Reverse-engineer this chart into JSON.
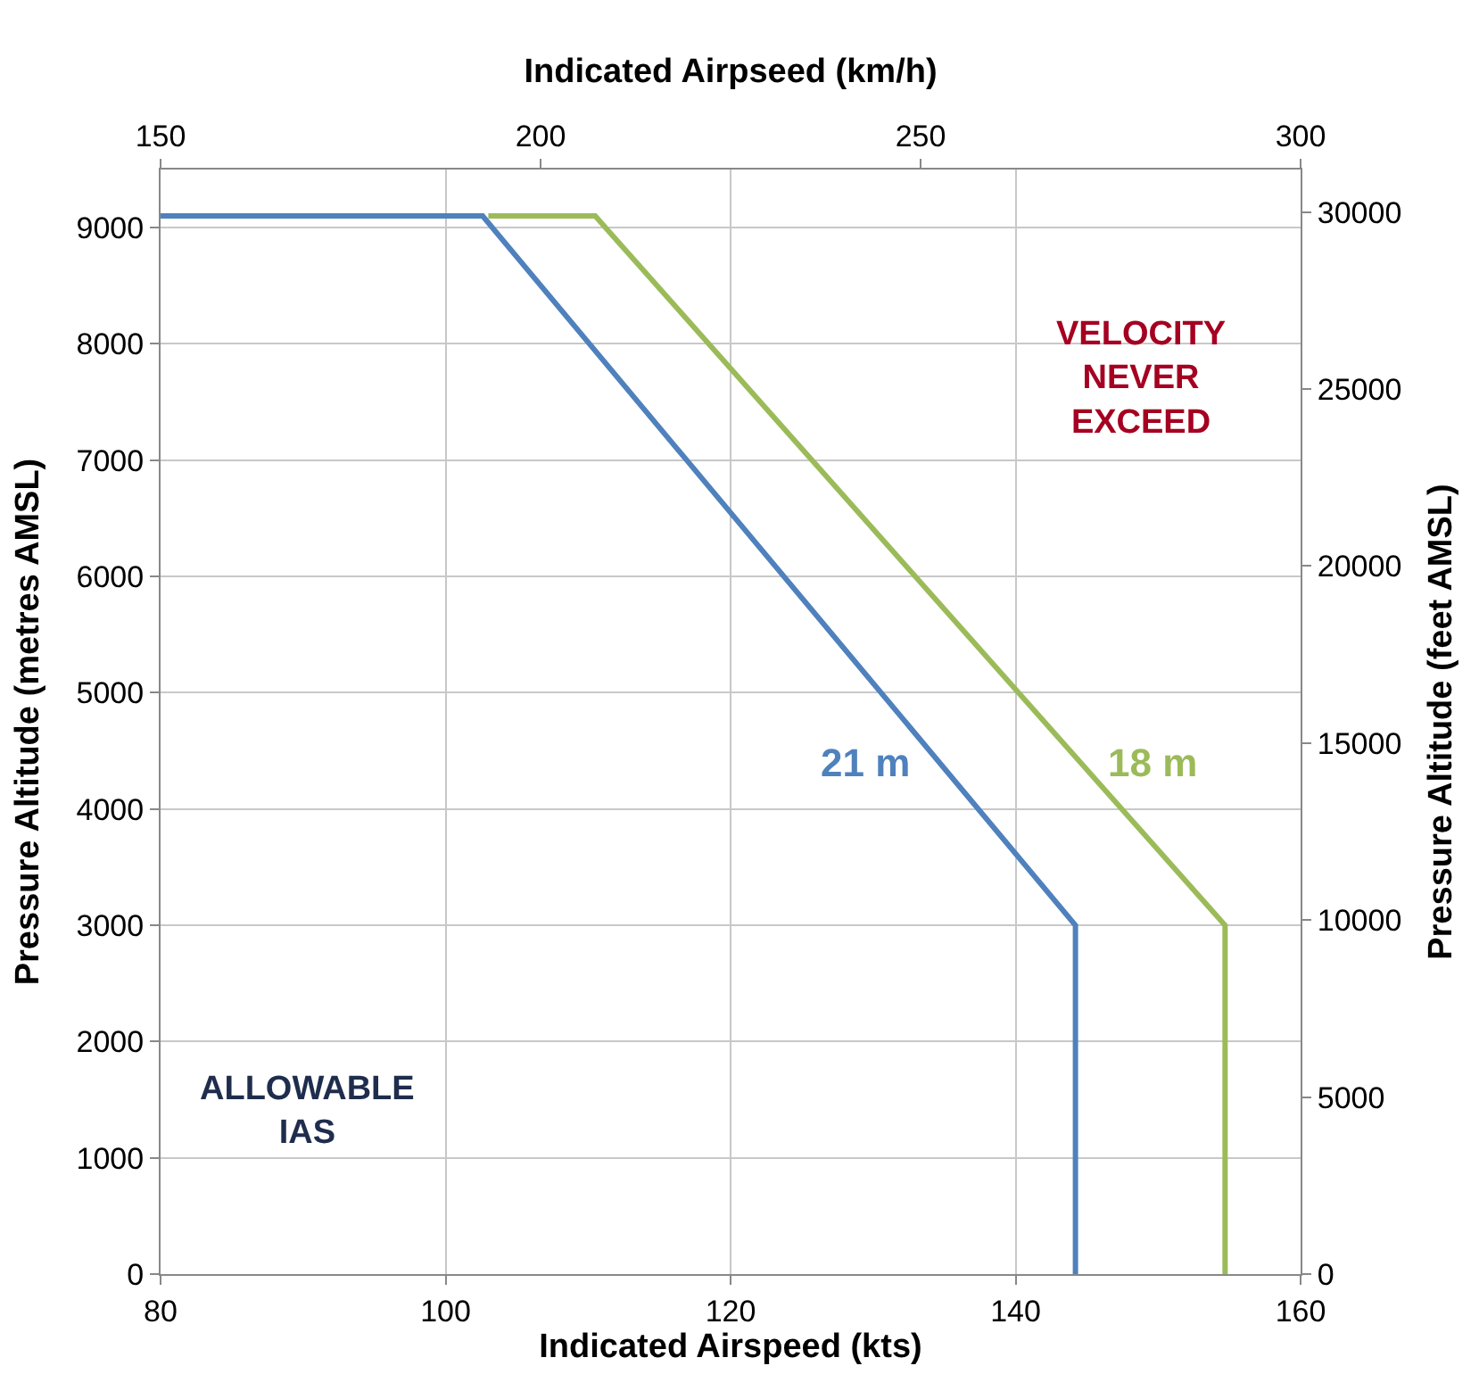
{
  "chart_data": {
    "type": "line",
    "xlabel": "Indicated Airspeed (kts)",
    "x2label": "Indicated Airpseed (km/h)",
    "ylabel": "Pressure Altitude (metres AMSL)",
    "y2label": "Pressure Altitude (feet AMSL)",
    "xlim": [
      80,
      160
    ],
    "xticks": [
      80,
      100,
      120,
      140,
      160
    ],
    "x2lim": [
      150,
      300
    ],
    "x2ticks": [
      150,
      200,
      250,
      300
    ],
    "ylim": [
      0,
      9500
    ],
    "yticks": [
      0,
      1000,
      2000,
      3000,
      4000,
      5000,
      6000,
      7000,
      8000,
      9000
    ],
    "y2lim": [
      0,
      31200
    ],
    "y2ticks": [
      0,
      5000,
      10000,
      15000,
      20000,
      25000,
      30000
    ],
    "series": [
      {
        "name": "18 m",
        "color": "#9bbb59",
        "x": [
          103,
          110.5,
          154.7,
          154.7
        ],
        "values": [
          9100,
          9100,
          3000,
          0
        ]
      },
      {
        "name": "21 m",
        "color": "#4f81bd",
        "x": [
          80,
          102.6,
          144.2,
          144.2
        ],
        "values": [
          9100,
          9100,
          3000,
          0
        ]
      }
    ],
    "annotations": [
      "VELOCITY\nNEVER\nEXCEED",
      "ALLOWABLE\nIAS"
    ],
    "grid": true,
    "legend": false,
    "marker": "none",
    "line_style": "solid"
  }
}
